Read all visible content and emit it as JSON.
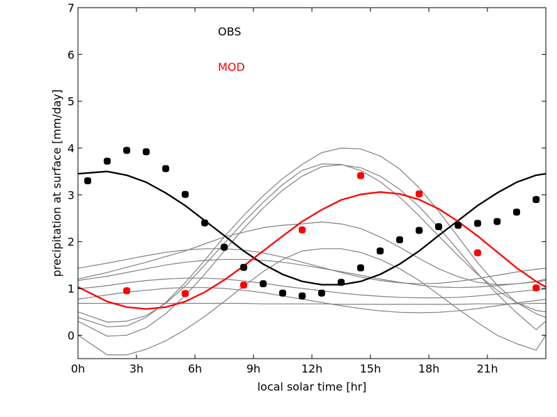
{
  "chart_data": {
    "type": "line",
    "xlabel": "local solar time [hr]",
    "ylabel": "precipitation at surface [mm/day]",
    "xlim": [
      0,
      24
    ],
    "ylim": [
      -0.5,
      7
    ],
    "xticks": [
      {
        "value": 0,
        "label": "0h"
      },
      {
        "value": 3,
        "label": "3h"
      },
      {
        "value": 6,
        "label": "6h"
      },
      {
        "value": 9,
        "label": "9h"
      },
      {
        "value": 12,
        "label": "12h"
      },
      {
        "value": 15,
        "label": "15h"
      },
      {
        "value": 18,
        "label": "18h"
      },
      {
        "value": 21,
        "label": "21h"
      }
    ],
    "yticks": [
      {
        "value": 0,
        "label": "0"
      },
      {
        "value": 1,
        "label": "1"
      },
      {
        "value": 2,
        "label": "2"
      },
      {
        "value": 3,
        "label": "3"
      },
      {
        "value": 4,
        "label": "4"
      },
      {
        "value": 5,
        "label": "5"
      },
      {
        "value": 6,
        "label": "6"
      },
      {
        "value": 7,
        "label": "7"
      }
    ],
    "grid": false,
    "legend": [
      {
        "label": "OBS",
        "color": "#000000"
      },
      {
        "label": "MOD",
        "color": "#ff0000"
      }
    ],
    "curve_hours": [
      0,
      1.5,
      2.5,
      3.5,
      4.5,
      5.5,
      6.5,
      7.5,
      8.5,
      9.5,
      10.5,
      11.5,
      12.5,
      13.5,
      14.5,
      15.5,
      16.5,
      17.5,
      18.5,
      19.5,
      20.5,
      21.5,
      22.5,
      23.5,
      24
    ],
    "series": [
      {
        "name": "OBS",
        "kind": "line",
        "color": "#000000",
        "y": [
          3.45,
          3.5,
          3.42,
          3.27,
          3.04,
          2.77,
          2.45,
          2.13,
          1.8,
          1.52,
          1.3,
          1.15,
          1.08,
          1.08,
          1.15,
          1.3,
          1.52,
          1.8,
          2.13,
          2.45,
          2.77,
          3.04,
          3.27,
          3.42,
          3.45
        ]
      },
      {
        "name": "MOD",
        "kind": "line",
        "color": "#ff0000",
        "y": [
          1.03,
          0.72,
          0.6,
          0.56,
          0.6,
          0.72,
          0.92,
          1.18,
          1.48,
          1.8,
          2.12,
          2.43,
          2.68,
          2.89,
          3.01,
          3.06,
          3.02,
          2.9,
          2.7,
          2.43,
          2.12,
          1.78,
          1.44,
          1.15,
          1.03
        ]
      },
      {
        "name": "",
        "kind": "model",
        "color": "#808080",
        "y": [
          0.5,
          0.28,
          0.3,
          0.42,
          0.68,
          1.05,
          1.5,
          1.96,
          2.42,
          2.84,
          3.22,
          3.52,
          3.66,
          3.65,
          3.52,
          3.28,
          2.95,
          2.55,
          2.12,
          1.7,
          1.3,
          0.96,
          0.7,
          0.53,
          0.5
        ]
      },
      {
        "name": "",
        "kind": "model",
        "color": "#808080",
        "y": [
          0.38,
          0.18,
          0.2,
          0.38,
          0.7,
          1.12,
          1.6,
          2.1,
          2.56,
          2.98,
          3.35,
          3.65,
          3.9,
          4.0,
          3.98,
          3.83,
          3.55,
          3.15,
          2.65,
          2.1,
          1.55,
          1.07,
          0.7,
          0.46,
          0.38
        ]
      },
      {
        "name": "",
        "kind": "model",
        "color": "#808080",
        "y": [
          0.3,
          -0.02,
          0.0,
          0.16,
          0.46,
          0.85,
          1.3,
          1.8,
          2.28,
          2.72,
          3.1,
          3.4,
          3.6,
          3.64,
          3.58,
          3.4,
          3.12,
          2.75,
          2.3,
          1.82,
          1.32,
          0.88,
          0.48,
          0.12,
          0.3
        ]
      },
      {
        "name": "",
        "kind": "model",
        "color": "#808080",
        "y": [
          0.0,
          -0.42,
          -0.42,
          -0.3,
          -0.12,
          0.12,
          0.4,
          0.72,
          1.05,
          1.36,
          1.62,
          1.8,
          1.85,
          1.85,
          1.77,
          1.62,
          1.42,
          1.17,
          0.87,
          0.56,
          0.27,
          0.0,
          -0.18,
          -0.32,
          0.0
        ]
      },
      {
        "name": "",
        "kind": "model",
        "color": "#808080",
        "y": [
          1.43,
          1.54,
          1.62,
          1.7,
          1.77,
          1.82,
          1.85,
          1.85,
          1.82,
          1.76,
          1.67,
          1.56,
          1.45,
          1.34,
          1.24,
          1.17,
          1.12,
          1.1,
          1.11,
          1.15,
          1.21,
          1.28,
          1.35,
          1.41,
          1.43
        ]
      },
      {
        "name": "",
        "kind": "model",
        "color": "#808080",
        "y": [
          1.2,
          1.34,
          1.45,
          1.56,
          1.68,
          1.8,
          1.95,
          2.1,
          2.2,
          2.3,
          2.35,
          2.38,
          2.42,
          2.38,
          2.28,
          2.1,
          1.88,
          1.64,
          1.42,
          1.25,
          1.13,
          1.08,
          1.1,
          1.15,
          1.2
        ]
      },
      {
        "name": "",
        "kind": "model",
        "color": "#808080",
        "y": [
          1.17,
          1.26,
          1.34,
          1.42,
          1.5,
          1.56,
          1.6,
          1.62,
          1.62,
          1.6,
          1.56,
          1.5,
          1.43,
          1.36,
          1.28,
          1.2,
          1.13,
          1.07,
          1.03,
          1.02,
          1.03,
          1.06,
          1.1,
          1.14,
          1.17
        ]
      },
      {
        "name": "",
        "kind": "model",
        "color": "#808080",
        "y": [
          0.99,
          1.06,
          1.12,
          1.17,
          1.2,
          1.22,
          1.22,
          1.2,
          1.16,
          1.11,
          1.05,
          1.0,
          0.95,
          0.9,
          0.86,
          0.83,
          0.81,
          0.8,
          0.8,
          0.81,
          0.84,
          0.88,
          0.93,
          0.97,
          0.99
        ]
      },
      {
        "name": "",
        "kind": "model",
        "color": "#808080",
        "y": [
          0.77,
          0.86,
          0.92,
          0.96,
          1.0,
          1.02,
          1.02,
          1.0,
          0.96,
          0.91,
          0.84,
          0.77,
          0.7,
          0.63,
          0.57,
          0.52,
          0.49,
          0.48,
          0.49,
          0.52,
          0.57,
          0.63,
          0.69,
          0.74,
          0.77
        ]
      },
      {
        "name": "",
        "kind": "model",
        "color": "#808080",
        "y": [
          0.68,
          0.68,
          0.68,
          0.68,
          0.68,
          0.68,
          0.68,
          0.68,
          0.68,
          0.67,
          0.67,
          0.67,
          0.67,
          0.66,
          0.66,
          0.66,
          0.66,
          0.66,
          0.66,
          0.66,
          0.67,
          0.67,
          0.67,
          0.68,
          0.68
        ]
      },
      {
        "name": "OBS",
        "kind": "points",
        "color": "#000000",
        "x": [
          0.5,
          1.5,
          2.5,
          3.5,
          4.5,
          5.5,
          6.5,
          7.5,
          8.5,
          9.5,
          10.5,
          11.5,
          12.5,
          13.5,
          14.5,
          15.5,
          16.5,
          17.5,
          18.5,
          19.5,
          20.5,
          21.5,
          22.5,
          23.5
        ],
        "y": [
          3.3,
          3.72,
          3.95,
          3.92,
          3.56,
          3.01,
          2.4,
          1.88,
          1.45,
          1.1,
          0.9,
          0.84,
          0.9,
          1.13,
          1.44,
          1.8,
          2.04,
          2.24,
          2.32,
          2.35,
          2.39,
          2.43,
          2.63,
          2.9
        ]
      },
      {
        "name": "MOD",
        "kind": "points",
        "color": "#ff0000",
        "x": [
          2.5,
          5.5,
          8.5,
          11.5,
          14.5,
          17.5,
          20.5,
          23.5
        ],
        "y": [
          0.95,
          0.89,
          1.07,
          2.25,
          3.41,
          3.02,
          1.76,
          1.01
        ]
      }
    ]
  }
}
